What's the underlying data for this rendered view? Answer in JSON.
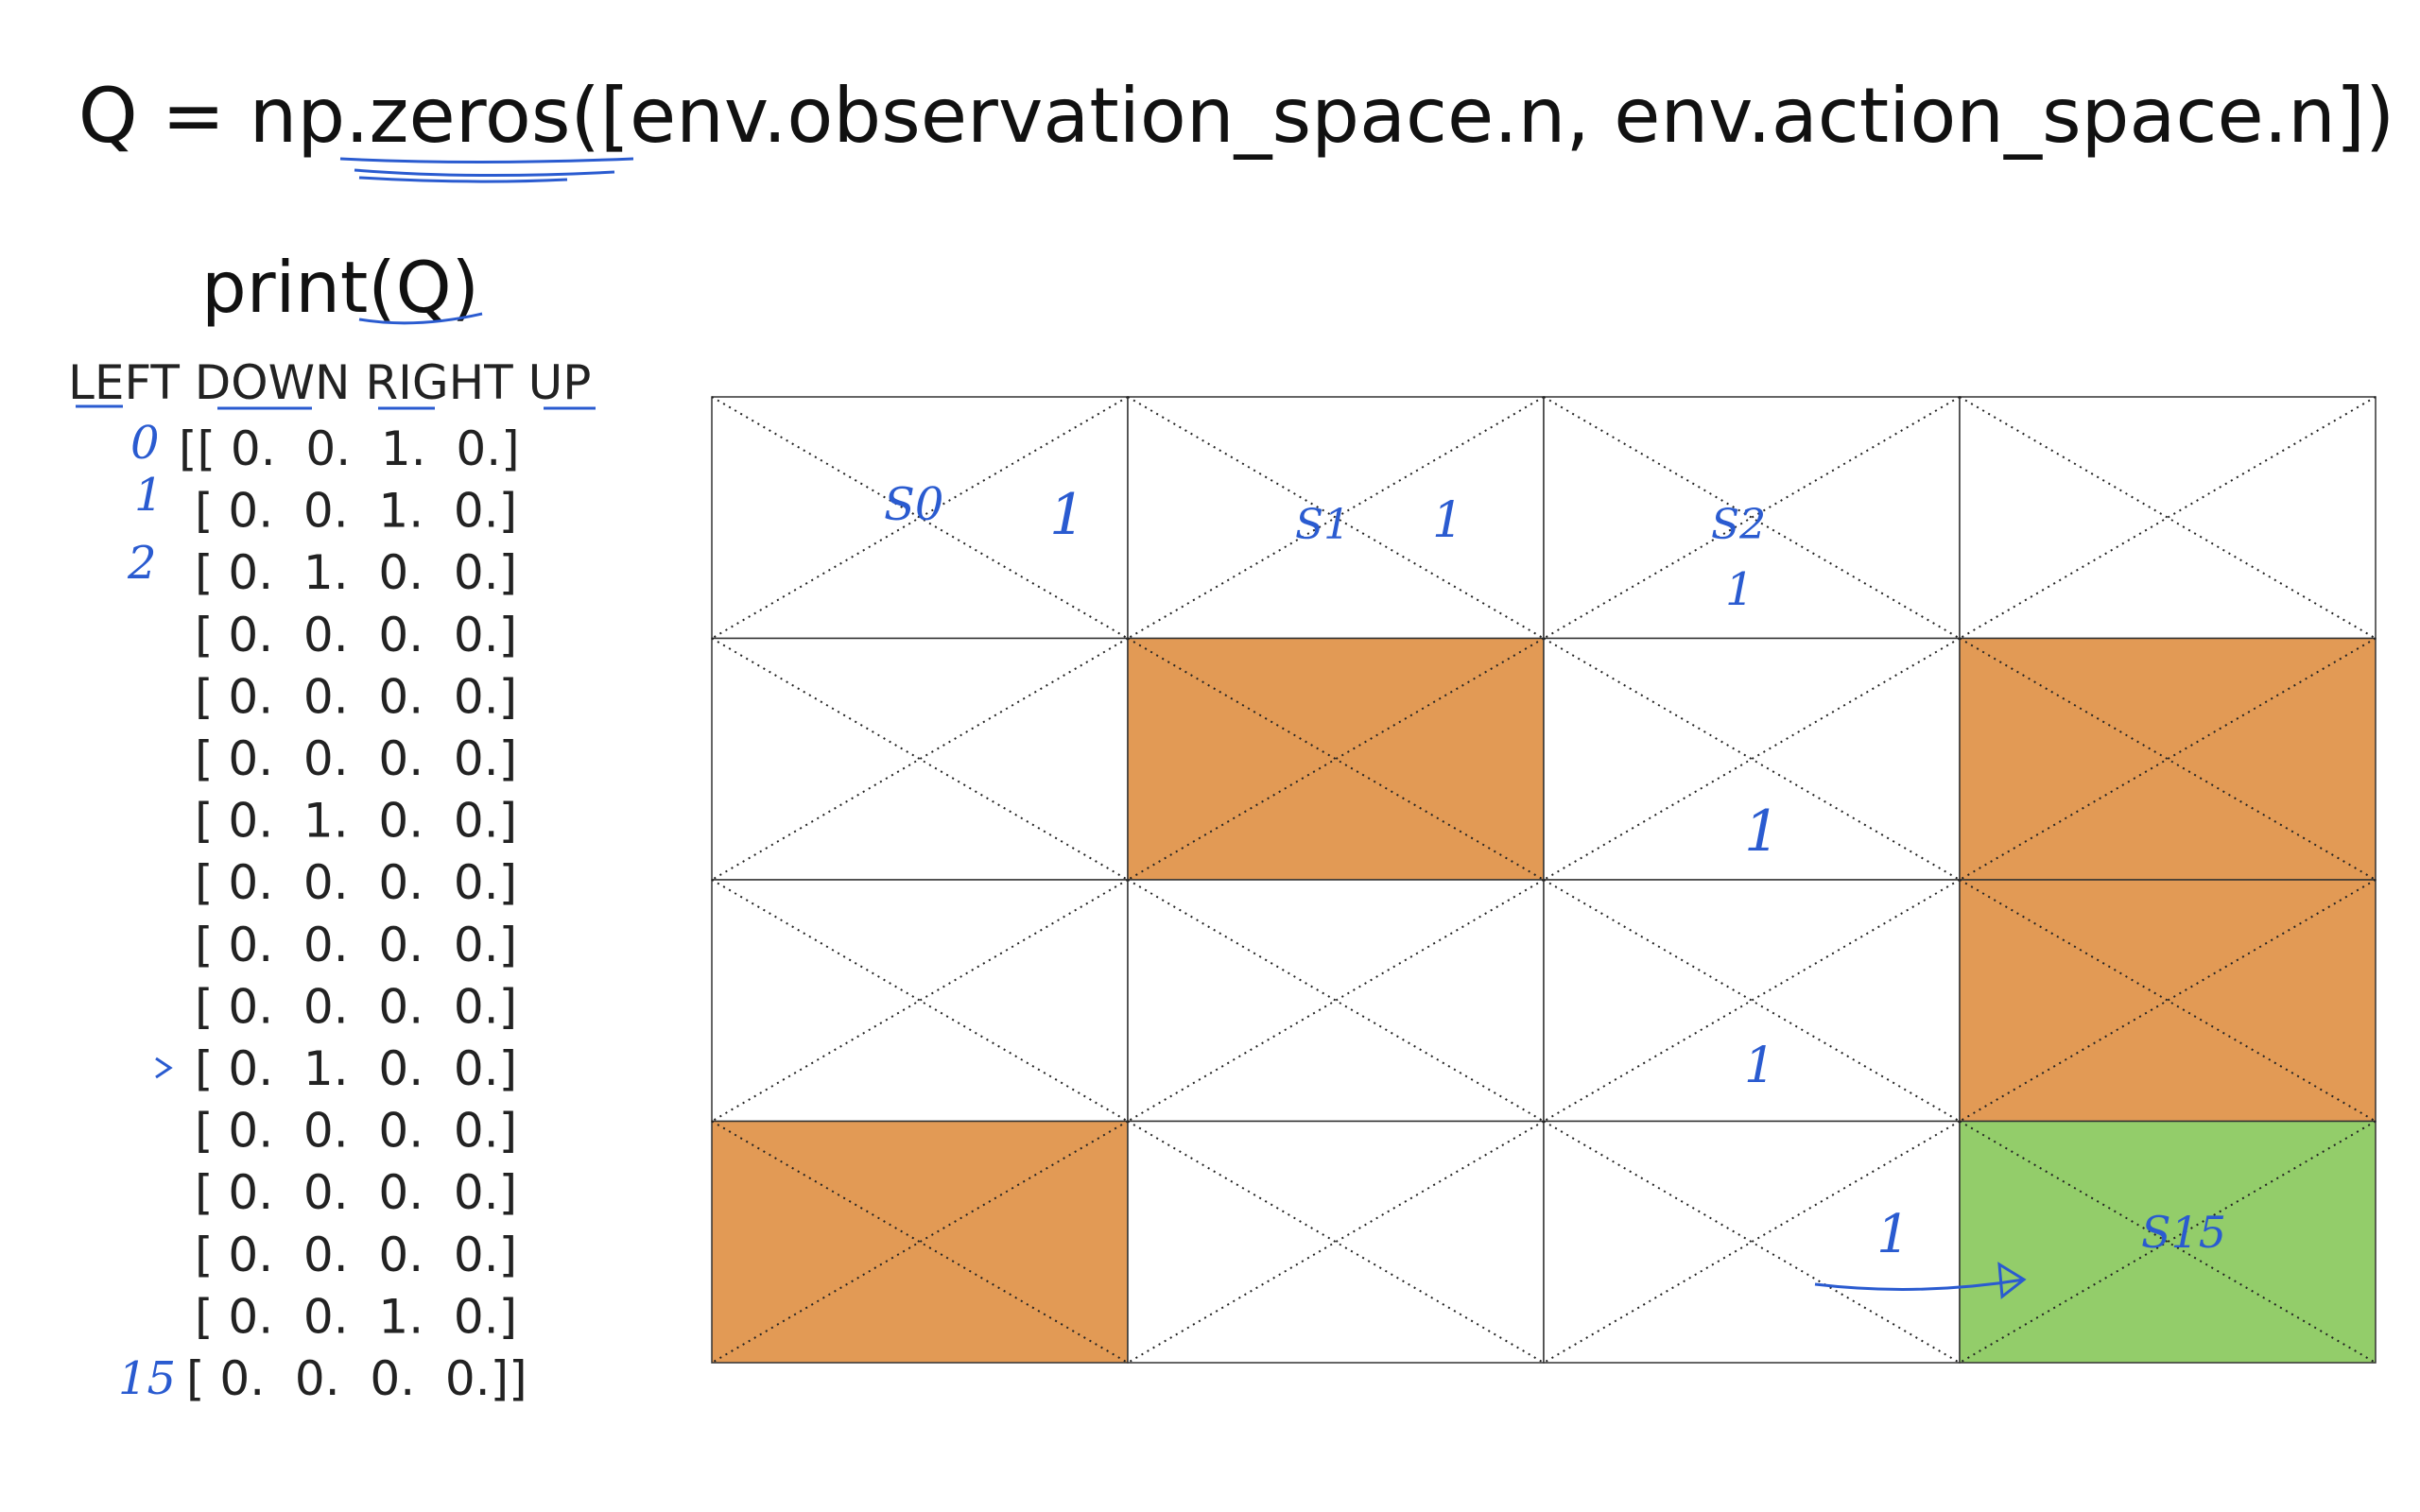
{
  "code": {
    "title": "Q = np.zeros([env.observation_space.n, env.action_space.n])",
    "print": "print(Q)"
  },
  "matrix": {
    "header": "LEFT DOWN RIGHT UP",
    "rows": [
      "[[ 0.  0.  1.  0.]",
      "[ 0.  0.  1.  0.]",
      "[ 0.  1.  0.  0.]",
      "[ 0.  0.  0.  0.]",
      "[ 0.  0.  0.  0.]",
      "[ 0.  0.  0.  0.]",
      "[ 0.  1.  0.  0.]",
      "[ 0.  0.  0.  0.]",
      "[ 0.  0.  0.  0.]",
      "[ 0.  0.  0.  0.]",
      "[ 0.  1.  0.  0.]",
      "[ 0.  0.  0.  0.]",
      "[ 0.  0.  0.  0.]",
      "[ 0.  0.  0.  0.]",
      "[ 0.  0.  1.  0.]",
      "[ 0.  0.  0.  0.]]"
    ]
  },
  "annotations": {
    "row_indices": [
      "0",
      "1",
      "2",
      "15"
    ],
    "grid": [
      "S0",
      "1",
      "S1",
      "1",
      "S2",
      "1",
      "1",
      "1",
      "1",
      "S15"
    ]
  }
}
